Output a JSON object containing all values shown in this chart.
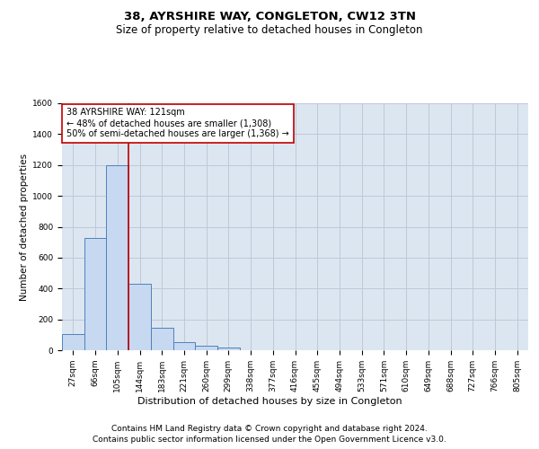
{
  "title": "38, AYRSHIRE WAY, CONGLETON, CW12 3TN",
  "subtitle": "Size of property relative to detached houses in Congleton",
  "xlabel": "Distribution of detached houses by size in Congleton",
  "ylabel": "Number of detached properties",
  "bar_labels": [
    "27sqm",
    "66sqm",
    "105sqm",
    "144sqm",
    "183sqm",
    "221sqm",
    "260sqm",
    "299sqm",
    "338sqm",
    "377sqm",
    "416sqm",
    "455sqm",
    "494sqm",
    "533sqm",
    "571sqm",
    "610sqm",
    "649sqm",
    "688sqm",
    "727sqm",
    "766sqm",
    "805sqm"
  ],
  "bar_values": [
    105,
    730,
    1200,
    430,
    145,
    50,
    30,
    20,
    0,
    0,
    0,
    0,
    0,
    0,
    0,
    0,
    0,
    0,
    0,
    0,
    0
  ],
  "bar_color": "#c6d9f0",
  "bar_edge_color": "#4f81bd",
  "grid_color": "#c0c8d8",
  "bg_color": "#dce6f1",
  "vline_x": 2.5,
  "vline_color": "#c00000",
  "annotation_text": "38 AYRSHIRE WAY: 121sqm\n← 48% of detached houses are smaller (1,308)\n50% of semi-detached houses are larger (1,368) →",
  "annotation_box_color": "#ffffff",
  "annotation_box_edge": "#c00000",
  "ylim": [
    0,
    1600
  ],
  "yticks": [
    0,
    200,
    400,
    600,
    800,
    1000,
    1200,
    1400,
    1600
  ],
  "footer_line1": "Contains HM Land Registry data © Crown copyright and database right 2024.",
  "footer_line2": "Contains public sector information licensed under the Open Government Licence v3.0.",
  "title_fontsize": 9.5,
  "subtitle_fontsize": 8.5,
  "ylabel_fontsize": 7.5,
  "xlabel_fontsize": 8,
  "tick_fontsize": 6.5,
  "annot_fontsize": 7,
  "footer_fontsize": 6.5
}
